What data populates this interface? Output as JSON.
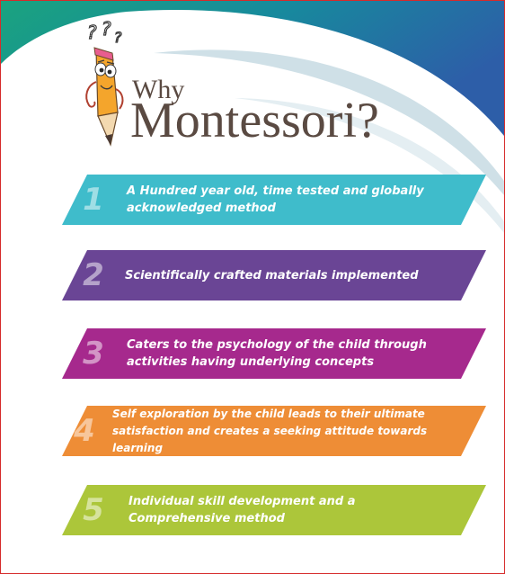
{
  "title": {
    "small": "Why",
    "main": "Montessori?"
  },
  "items": [
    {
      "number": "1",
      "text": "A Hundred year old, time tested and globally acknowledged method",
      "color": "#3fbccb"
    },
    {
      "number": "2",
      "text": "Scientifically crafted materials implemented",
      "color": "#6a4595"
    },
    {
      "number": "3",
      "text": "Caters to the psychology of the child through activities having underlying concepts",
      "color": "#a6298d"
    },
    {
      "number": "4",
      "text": "Self exploration by the child leads to their ultimate satisfaction and creates a seeking attitude towards learning",
      "color": "#ee8d36"
    },
    {
      "number": "5",
      "text": "Individual skill development and a Comprehensive method",
      "color": "#acc63a"
    }
  ],
  "mascot": {
    "icon": "pencil-mascot-icon",
    "question_marks": "???"
  }
}
